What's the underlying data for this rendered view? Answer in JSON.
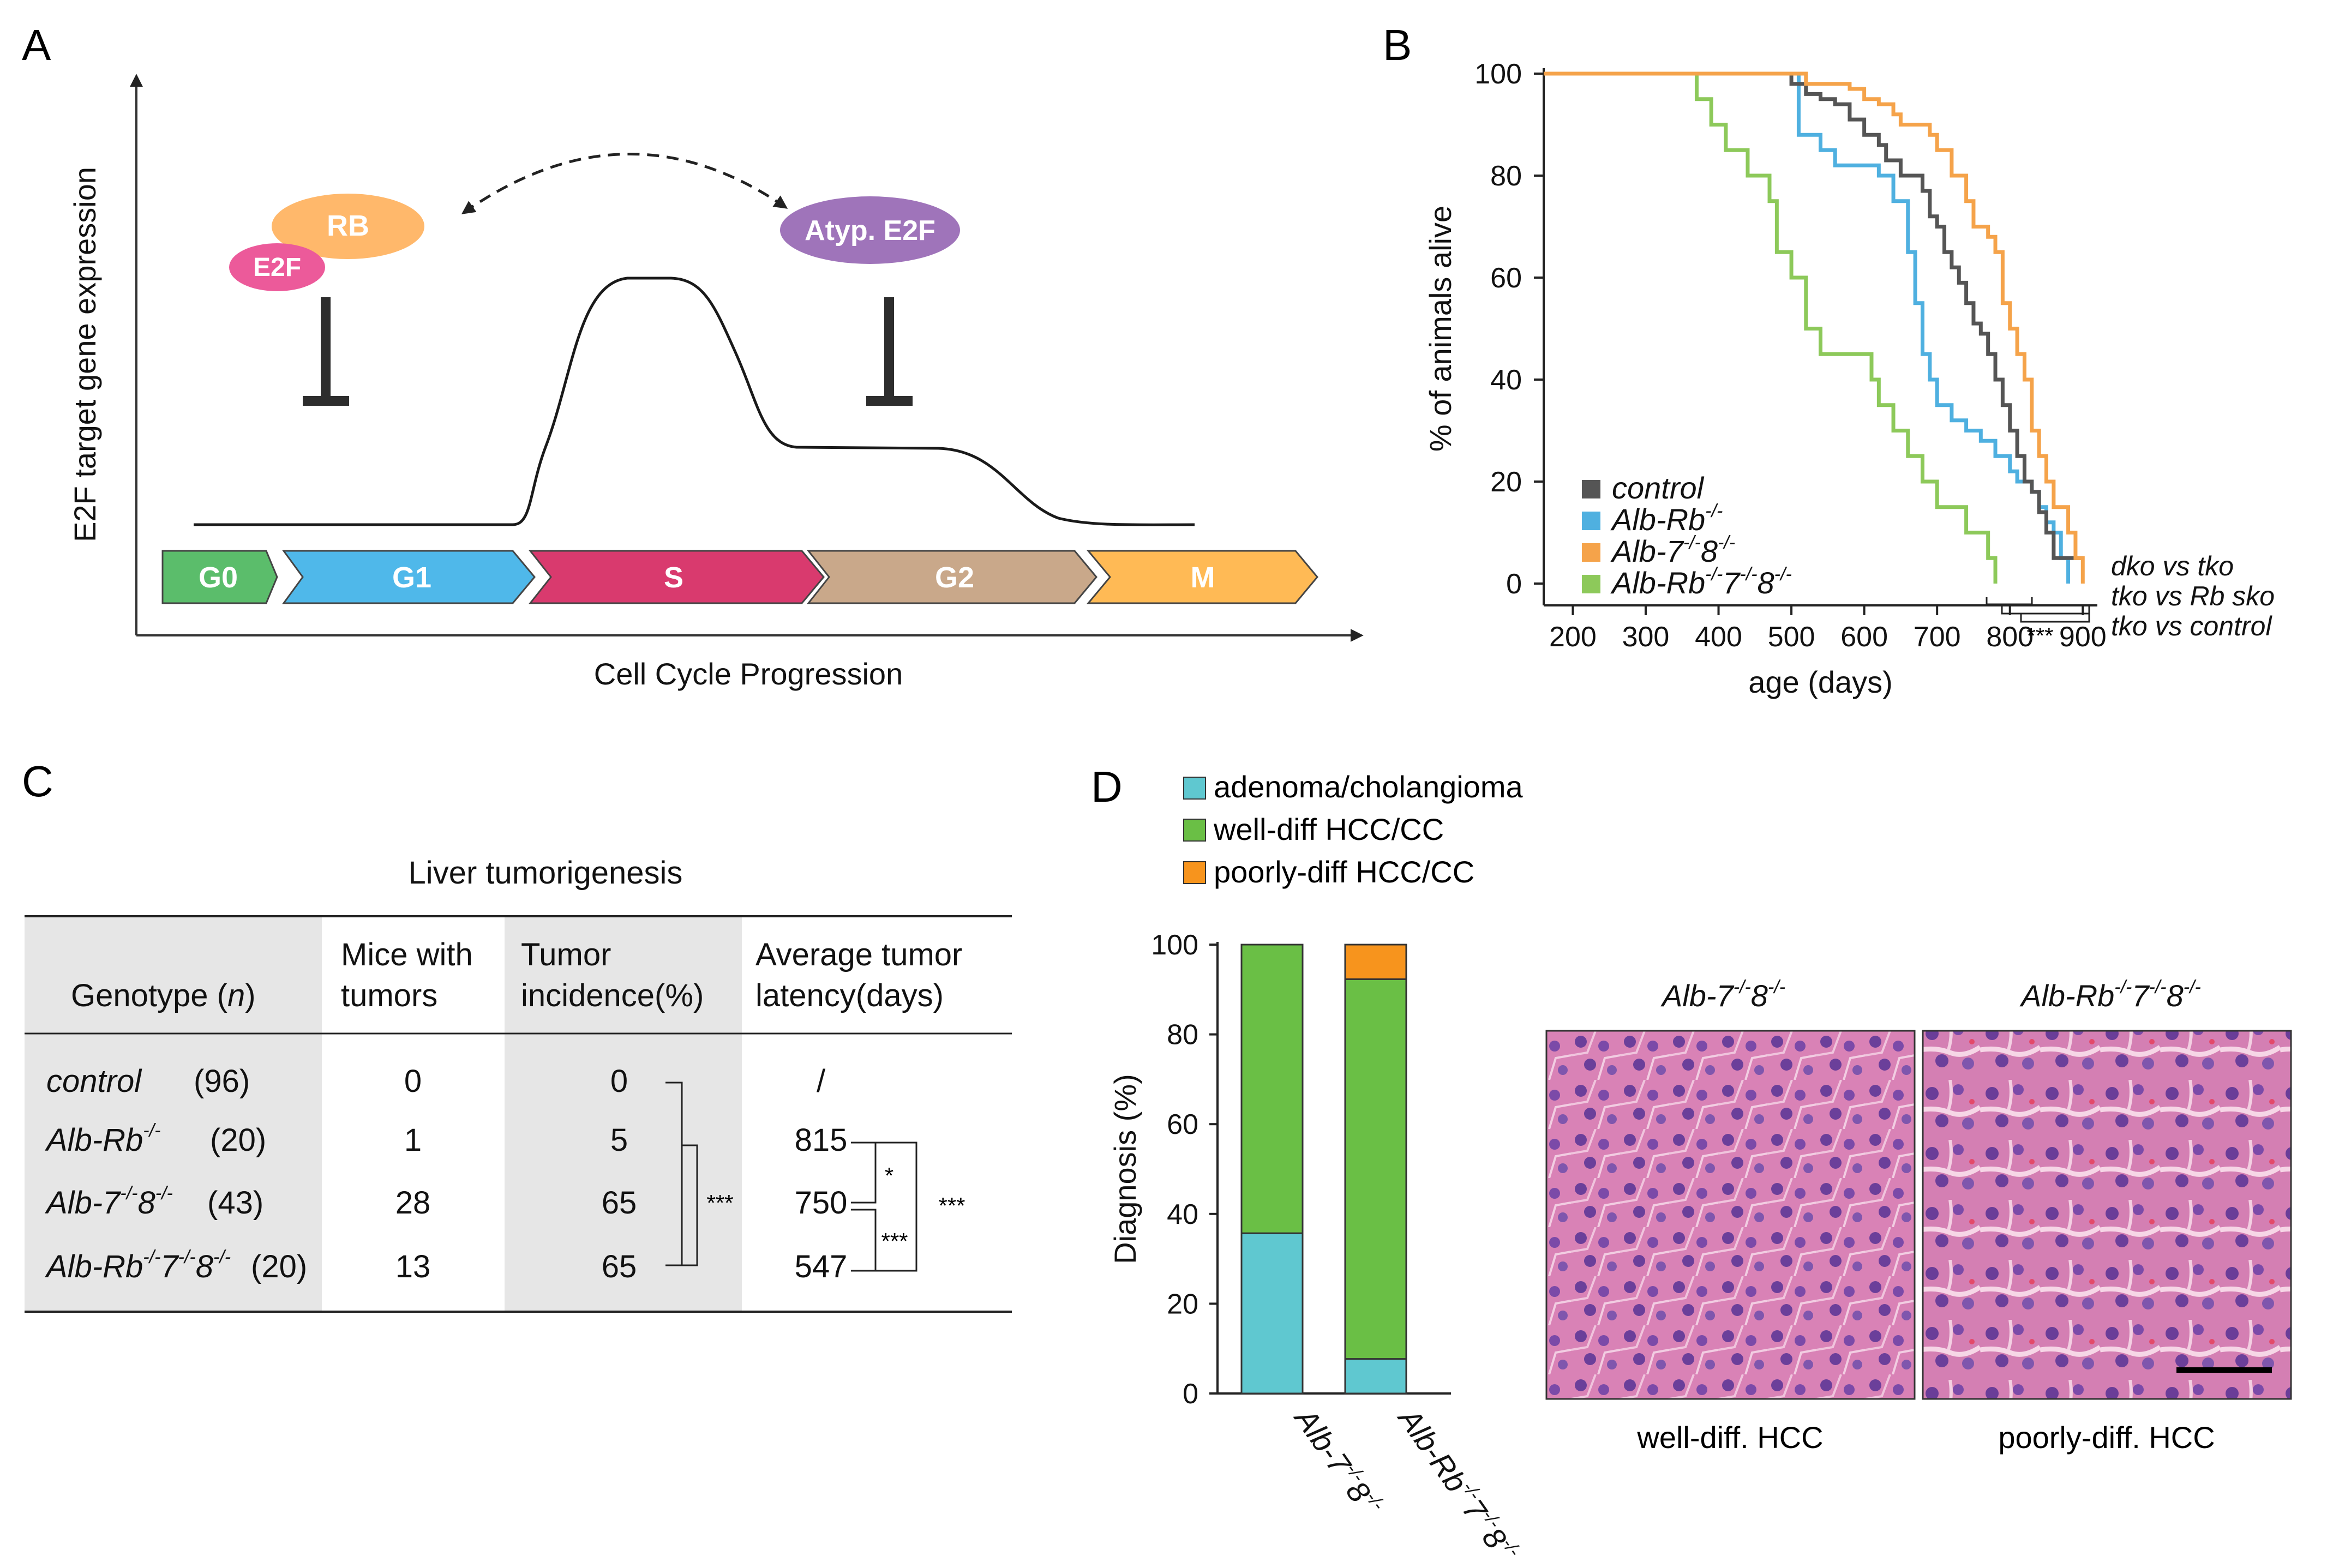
{
  "panels": {
    "A": {
      "label": "A",
      "y_axis_label": "E2F target gene expression",
      "x_axis_label": "Cell Cycle Progression",
      "complexes": {
        "rb": "RB",
        "e2f": "E2F",
        "atyp": "Atyp. E2F"
      },
      "phases": [
        "G0",
        "G1",
        "S",
        "G2",
        "M"
      ],
      "phase_colors": [
        "#5bbd6b",
        "#4fb8ea",
        "#d93a6e",
        "#c9a88a",
        "#ffba55"
      ],
      "complex_colors": {
        "rb": "#ffb86b",
        "e2f": "#ec5a9a",
        "atyp": "#9f74ba"
      }
    },
    "B": {
      "label": "B",
      "sig_labels": [
        "dko vs tko",
        "tko vs Rb sko",
        "tko vs control"
      ],
      "sig_stars": "***"
    },
    "C": {
      "label": "C",
      "title": "Liver tumorigenesis",
      "headers": {
        "genotype": "Genotype (",
        "genotype_n": "n",
        "genotype_close": ")",
        "mice_1": "Mice with",
        "mice_2": "tumors",
        "incidence_1": "Tumor",
        "incidence_2": "incidence(%)",
        "latency_1": "Average tumor",
        "latency_2": "latency(days)"
      },
      "rows": [
        {
          "genotype": "control",
          "sup": "",
          "rest": "",
          "sup2": "",
          "rest2": "",
          "sup3": "",
          "n": "(96)",
          "mice": "0",
          "incidence": "0",
          "latency": "/"
        },
        {
          "genotype": "Alb-Rb",
          "sup": "-/-",
          "rest": "",
          "sup2": "",
          "rest2": "",
          "sup3": "",
          "n": "(20)",
          "mice": "1",
          "incidence": "5",
          "latency": "815"
        },
        {
          "genotype": "Alb-7",
          "sup": "-/-",
          "rest": "8",
          "sup2": "-/-",
          "rest2": "",
          "sup3": "",
          "n": "(43)",
          "mice": "28",
          "incidence": "65",
          "latency": "750"
        },
        {
          "genotype": "Alb-Rb",
          "sup": "-/-",
          "rest": "7",
          "sup2": "-/-",
          "rest2": "8",
          "sup3": "-/-",
          "n": "(20)",
          "mice": "13",
          "incidence": "65",
          "latency": "547"
        }
      ],
      "sig": {
        "incidence": "***",
        "latency_a": "*",
        "latency_b": "***",
        "latency_c": "***"
      }
    },
    "D": {
      "label": "D",
      "legend": [
        "adenoma/cholangioma",
        "well-diff HCC/CC",
        "poorly-diff HCC/CC"
      ],
      "micrograph_titles": [
        "Alb-7-/-8-/-",
        "Alb-Rb-/-7-/-8-/-"
      ],
      "micrograph_captions": [
        "well-diff. HCC",
        "poorly-diff. HCC"
      ]
    }
  },
  "chart_data": [
    {
      "type": "line",
      "chart_id": "survival",
      "xlabel": "age (days)",
      "ylabel": "% of animals alive",
      "xlim": [
        160,
        920
      ],
      "ylim": [
        0,
        100
      ],
      "xticks": [
        200,
        300,
        400,
        500,
        600,
        700,
        800,
        900
      ],
      "yticks": [
        0,
        20,
        40,
        60,
        80,
        100
      ],
      "legend_position": "bottom-left",
      "series": [
        {
          "name": "control",
          "name_sup": "",
          "color": "#555555",
          "points": [
            [
              160,
              100
            ],
            [
              500,
              100
            ],
            [
              500,
              98
            ],
            [
              520,
              96
            ],
            [
              540,
              95
            ],
            [
              560,
              94
            ],
            [
              580,
              91
            ],
            [
              600,
              88
            ],
            [
              620,
              86
            ],
            [
              630,
              83
            ],
            [
              650,
              80
            ],
            [
              670,
              80
            ],
            [
              680,
              77
            ],
            [
              690,
              72
            ],
            [
              700,
              70
            ],
            [
              710,
              65
            ],
            [
              720,
              62
            ],
            [
              730,
              59
            ],
            [
              740,
              55
            ],
            [
              750,
              51
            ],
            [
              760,
              49
            ],
            [
              770,
              45
            ],
            [
              780,
              40
            ],
            [
              790,
              35
            ],
            [
              800,
              30
            ],
            [
              810,
              25
            ],
            [
              820,
              20
            ],
            [
              830,
              18
            ],
            [
              840,
              14
            ],
            [
              850,
              10
            ],
            [
              860,
              5
            ],
            [
              900,
              5
            ]
          ]
        },
        {
          "name": "Alb-Rb",
          "name_sup": "-/-",
          "color": "#4fb0e0",
          "points": [
            [
              160,
              100
            ],
            [
              510,
              100
            ],
            [
              510,
              88
            ],
            [
              530,
              88
            ],
            [
              540,
              85
            ],
            [
              560,
              82
            ],
            [
              600,
              82
            ],
            [
              620,
              80
            ],
            [
              640,
              75
            ],
            [
              660,
              65
            ],
            [
              670,
              55
            ],
            [
              680,
              45
            ],
            [
              690,
              40
            ],
            [
              700,
              35
            ],
            [
              720,
              32
            ],
            [
              740,
              30
            ],
            [
              760,
              28
            ],
            [
              780,
              25
            ],
            [
              800,
              22
            ],
            [
              810,
              20
            ],
            [
              830,
              18
            ],
            [
              840,
              15
            ],
            [
              850,
              12
            ],
            [
              860,
              10
            ],
            [
              870,
              5
            ],
            [
              880,
              0
            ]
          ]
        },
        {
          "name": "Alb-7-/-8",
          "name_sup": "-/-",
          "color": "#f5a34a",
          "points": [
            [
              160,
              100
            ],
            [
              520,
              100
            ],
            [
              520,
              98
            ],
            [
              560,
              98
            ],
            [
              580,
              97
            ],
            [
              600,
              95
            ],
            [
              620,
              94
            ],
            [
              640,
              92
            ],
            [
              650,
              90
            ],
            [
              670,
              90
            ],
            [
              690,
              88
            ],
            [
              700,
              85
            ],
            [
              720,
              80
            ],
            [
              740,
              75
            ],
            [
              750,
              70
            ],
            [
              770,
              68
            ],
            [
              780,
              65
            ],
            [
              790,
              55
            ],
            [
              800,
              50
            ],
            [
              810,
              45
            ],
            [
              820,
              40
            ],
            [
              830,
              30
            ],
            [
              840,
              25
            ],
            [
              850,
              20
            ],
            [
              860,
              15
            ],
            [
              880,
              10
            ],
            [
              890,
              5
            ],
            [
              900,
              0
            ]
          ]
        },
        {
          "name": "Alb-Rb-/-7-/-8",
          "name_sup": "-/-",
          "color": "#8dc95a",
          "points": [
            [
              160,
              100
            ],
            [
              370,
              100
            ],
            [
              370,
              95
            ],
            [
              390,
              90
            ],
            [
              410,
              85
            ],
            [
              440,
              80
            ],
            [
              470,
              75
            ],
            [
              480,
              65
            ],
            [
              500,
              60
            ],
            [
              520,
              50
            ],
            [
              540,
              45
            ],
            [
              600,
              45
            ],
            [
              610,
              40
            ],
            [
              620,
              35
            ],
            [
              640,
              30
            ],
            [
              660,
              25
            ],
            [
              680,
              20
            ],
            [
              700,
              15
            ],
            [
              740,
              10
            ],
            [
              770,
              5
            ],
            [
              780,
              0
            ]
          ]
        }
      ]
    },
    {
      "type": "bar",
      "chart_id": "diagnosis",
      "stacked": true,
      "ylabel": "Diagnosis (%)",
      "ylim": [
        0,
        100
      ],
      "yticks": [
        0,
        20,
        40,
        60,
        80,
        100
      ],
      "categories": [
        "Alb-7-/-8-/-",
        "Alb-Rb-/-7-/-8-/-"
      ],
      "series": [
        {
          "name": "adenoma/cholangioma",
          "color": "#5fc8d0",
          "values": [
            35.7,
            7.7
          ]
        },
        {
          "name": "well-diff HCC/CC",
          "color": "#6abf45",
          "values": [
            64.3,
            84.6
          ]
        },
        {
          "name": "poorly-diff HCC/CC",
          "color": "#f7941d",
          "values": [
            0,
            7.7
          ]
        }
      ]
    }
  ]
}
